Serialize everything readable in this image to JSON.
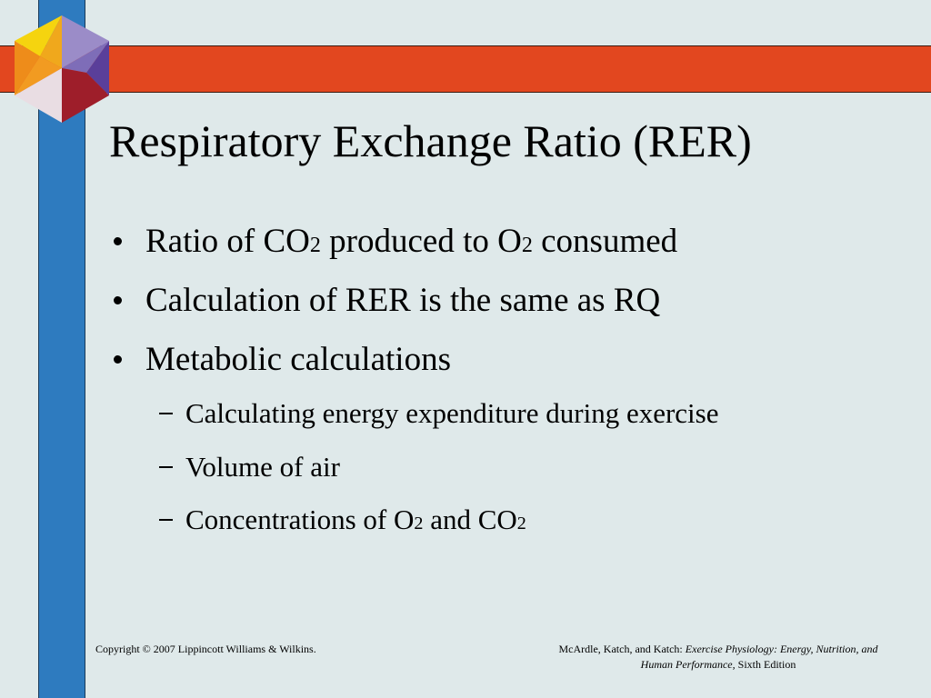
{
  "title": "Respiratory Exchange Ratio (RER)",
  "bullets": [
    [
      "Ratio of CO",
      "2",
      " produced to O",
      "2",
      " consumed"
    ],
    [
      "Calculation of RER is the same as RQ"
    ],
    [
      "Metabolic calculations"
    ]
  ],
  "sub_bullets": [
    [
      "Calculating energy expenditure during exercise"
    ],
    [
      "Volume of air"
    ],
    [
      "Concentrations of O",
      "2",
      " and CO",
      "2"
    ]
  ],
  "footer": {
    "copyright": "Copyright © 2007 Lippincott Williams & Wilkins.",
    "citation": [
      "McArdle, Katch, and Katch: ",
      "Exercise Physiology: Energy, Nutrition, and Human Performance,",
      " Sixth Edition"
    ]
  }
}
